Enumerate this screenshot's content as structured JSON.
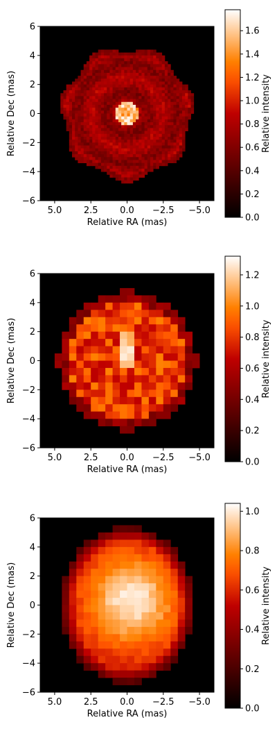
{
  "chart_data": [
    {
      "type": "heatmap",
      "xlabel": "Relative RA (mas)",
      "ylabel": "Relative Dec (mas)",
      "colorbar_label": "Relative intensity",
      "xlim": [
        6,
        -6
      ],
      "ylim": [
        -6,
        6
      ],
      "xticks": [
        "5.0",
        "2.5",
        "0.0",
        "−2.5",
        "−5.0"
      ],
      "xtick_values": [
        5,
        2.5,
        0,
        -2.5,
        -5
      ],
      "yticks": [
        "−6",
        "−4",
        "−2",
        "0",
        "2",
        "4",
        "6"
      ],
      "ytick_values": [
        -6,
        -4,
        -2,
        0,
        2,
        4,
        6
      ],
      "colorbar_range": [
        0,
        1.78
      ],
      "colorbar_ticks": [
        "0.0",
        "0.2",
        "0.4",
        "0.6",
        "0.8",
        "1.0",
        "1.2",
        "1.4",
        "1.6"
      ],
      "colorbar_tick_values": [
        0,
        0.2,
        0.4,
        0.6,
        0.8,
        1.0,
        1.2,
        1.4,
        1.6
      ],
      "colormap": "gist_heat",
      "grid": false,
      "disk_radius_mas": 4.5,
      "mean_intensity": 0.72,
      "peak_intensity": 1.75,
      "resolution": "fine"
    },
    {
      "type": "heatmap",
      "xlabel": "Relative RA (mas)",
      "ylabel": "Relative Dec (mas)",
      "colorbar_label": "Relative intensity",
      "xlim": [
        6,
        -6
      ],
      "ylim": [
        -6,
        6
      ],
      "xticks": [
        "5.0",
        "2.5",
        "0.0",
        "−2.5",
        "−5.0"
      ],
      "xtick_values": [
        5,
        2.5,
        0,
        -2.5,
        -5
      ],
      "yticks": [
        "−6",
        "−4",
        "−2",
        "0",
        "2",
        "4",
        "6"
      ],
      "ytick_values": [
        -6,
        -4,
        -2,
        0,
        2,
        4,
        6
      ],
      "colorbar_range": [
        0,
        1.32
      ],
      "colorbar_ticks": [
        "0.0",
        "0.2",
        "0.4",
        "0.6",
        "0.8",
        "1.0",
        "1.2"
      ],
      "colorbar_tick_values": [
        0,
        0.2,
        0.4,
        0.6,
        0.8,
        1.0,
        1.2
      ],
      "colormap": "gist_heat",
      "grid": false,
      "disk_radius_mas": 4.8,
      "mean_intensity": 0.82,
      "peak_intensity": 1.3,
      "resolution": "pixelated"
    },
    {
      "type": "heatmap",
      "xlabel": "Relative RA (mas)",
      "ylabel": "Relative Dec (mas)",
      "colorbar_label": "Relative intensity",
      "xlim": [
        6,
        -6
      ],
      "ylim": [
        -6,
        6
      ],
      "xticks": [
        "5.0",
        "2.5",
        "0.0",
        "−2.5",
        "−5.0"
      ],
      "xtick_values": [
        5,
        2.5,
        0,
        -2.5,
        -5
      ],
      "yticks": [
        "−6",
        "−4",
        "−2",
        "0",
        "2",
        "4",
        "6"
      ],
      "ytick_values": [
        -6,
        -4,
        -2,
        0,
        2,
        4,
        6
      ],
      "colorbar_range": [
        0,
        1.04
      ],
      "colorbar_ticks": [
        "0.0",
        "0.2",
        "0.4",
        "0.6",
        "0.8",
        "1.0"
      ],
      "colorbar_tick_values": [
        0,
        0.2,
        0.4,
        0.6,
        0.8,
        1.0
      ],
      "colormap": "gist_heat",
      "grid": false,
      "disk_radius_mas": 5.0,
      "mean_intensity": 0.75,
      "peak_intensity": 1.02,
      "resolution": "smooth-pixelated"
    }
  ]
}
